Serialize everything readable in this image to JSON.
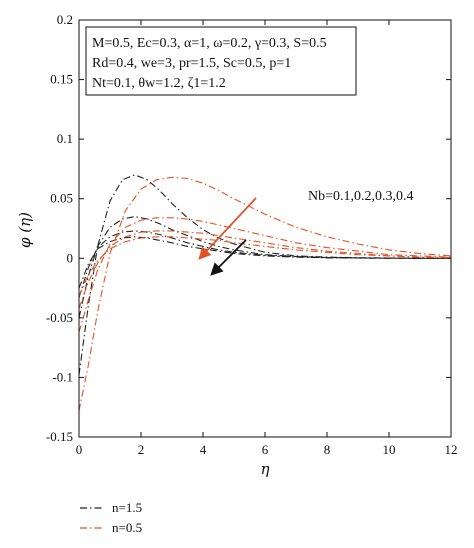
{
  "chart_data": {
    "type": "line",
    "xlabel": "η",
    "ylabel": "φ (η)",
    "xlim": [
      0,
      12
    ],
    "ylim": [
      -0.15,
      0.2
    ],
    "x_ticks": [
      "0",
      "2",
      "4",
      "6",
      "8",
      "10",
      "12"
    ],
    "y_ticks": [
      "-0.15",
      "-0.1",
      "-0.05",
      "0",
      "0.05",
      "0.1",
      "0.15",
      "0.2"
    ],
    "grid": false,
    "legend_position": "bottom-left, outside plot",
    "parameters": [
      "M=0.5, Ec=0.3, α=1, ω=0.2, γ=0.3, S=0.5",
      "Rd=0.4, we=3, pr=1.5, Sc=0.5, p=1",
      "Nt=0.1, θw=1.2, ζ1=1.2"
    ],
    "annotation": "Nb=0.1,0.2,0.3,0.4",
    "series": [
      {
        "name": "n=1.5",
        "color": "#222222",
        "dash": "dashdot",
        "curves": [
          {
            "x": [
              0,
              0.3,
              0.6,
              1.0,
              1.4,
              1.8,
              2.2,
              2.6,
              3.0,
              3.5,
              4.0,
              4.5,
              5.0,
              6.0,
              7.0,
              8.0,
              9.0,
              10.0,
              11.0,
              12.0
            ],
            "y": [
              -0.098,
              -0.04,
              0.01,
              0.048,
              0.066,
              0.07,
              0.066,
              0.057,
              0.046,
              0.034,
              0.024,
              0.017,
              0.012,
              0.005,
              0.002,
              0.001,
              0.0005,
              0.0002,
              0.0001,
              0
            ]
          },
          {
            "x": [
              0,
              0.3,
              0.6,
              1.0,
              1.4,
              1.8,
              2.2,
              2.6,
              3.0,
              3.5,
              4.0,
              4.5,
              5.0,
              6.0,
              7.0,
              8.0,
              9.0,
              10.0,
              11.0,
              12.0
            ],
            "y": [
              -0.05,
              -0.015,
              0.01,
              0.026,
              0.033,
              0.035,
              0.033,
              0.029,
              0.024,
              0.019,
              0.014,
              0.01,
              0.007,
              0.003,
              0.0015,
              0.0007,
              0.0003,
              0.0001,
              0,
              0
            ]
          },
          {
            "x": [
              0,
              0.3,
              0.6,
              1.0,
              1.4,
              1.8,
              2.2,
              2.6,
              3.0,
              3.5,
              4.0,
              4.5,
              5.0,
              6.0,
              7.0,
              8.0,
              9.0,
              10.0,
              11.0,
              12.0
            ],
            "y": [
              -0.033,
              -0.008,
              0.009,
              0.018,
              0.022,
              0.023,
              0.022,
              0.02,
              0.017,
              0.013,
              0.01,
              0.007,
              0.005,
              0.0025,
              0.0012,
              0.0005,
              0.0002,
              0.0001,
              0,
              0
            ]
          },
          {
            "x": [
              0,
              0.3,
              0.6,
              1.0,
              1.4,
              1.8,
              2.2,
              2.6,
              3.0,
              3.5,
              4.0,
              4.5,
              5.0,
              6.0,
              7.0,
              8.0,
              9.0,
              10.0,
              11.0,
              12.0
            ],
            "y": [
              -0.025,
              -0.005,
              0.008,
              0.014,
              0.017,
              0.018,
              0.017,
              0.015,
              0.013,
              0.01,
              0.008,
              0.006,
              0.004,
              0.002,
              0.001,
              0.0004,
              0.0002,
              0.0001,
              0,
              0
            ]
          }
        ]
      },
      {
        "name": "n=0.5",
        "color": "#e0532a",
        "dash": "dashdot",
        "curves": [
          {
            "x": [
              0,
              0.3,
              0.6,
              1.0,
              1.5,
              2.0,
              2.5,
              3.0,
              3.5,
              4.0,
              4.5,
              5.0,
              6.0,
              7.0,
              8.0,
              9.0,
              10.0,
              11.0,
              12.0
            ],
            "y": [
              -0.128,
              -0.09,
              -0.045,
              0.004,
              0.04,
              0.058,
              0.066,
              0.068,
              0.067,
              0.063,
              0.057,
              0.05,
              0.037,
              0.026,
              0.018,
              0.012,
              0.007,
              0.004,
              0.002
            ]
          },
          {
            "x": [
              0,
              0.3,
              0.6,
              1.0,
              1.5,
              2.0,
              2.5,
              3.0,
              3.5,
              4.0,
              4.5,
              5.0,
              6.0,
              7.0,
              8.0,
              9.0,
              10.0,
              11.0,
              12.0
            ],
            "y": [
              -0.062,
              -0.035,
              -0.01,
              0.012,
              0.026,
              0.032,
              0.034,
              0.034,
              0.033,
              0.031,
              0.028,
              0.025,
              0.019,
              0.013,
              0.009,
              0.006,
              0.003,
              0.002,
              0.001
            ]
          },
          {
            "x": [
              0,
              0.3,
              0.6,
              1.0,
              1.5,
              2.0,
              2.5,
              3.0,
              3.5,
              4.0,
              4.5,
              5.0,
              6.0,
              7.0,
              8.0,
              9.0,
              10.0,
              11.0,
              12.0
            ],
            "y": [
              -0.042,
              -0.02,
              -0.004,
              0.01,
              0.018,
              0.022,
              0.023,
              0.023,
              0.022,
              0.021,
              0.019,
              0.017,
              0.013,
              0.009,
              0.006,
              0.004,
              0.002,
              0.001,
              0.0005
            ]
          },
          {
            "x": [
              0,
              0.3,
              0.6,
              1.0,
              1.5,
              2.0,
              2.5,
              3.0,
              3.5,
              4.0,
              4.5,
              5.0,
              6.0,
              7.0,
              8.0,
              9.0,
              10.0,
              11.0,
              12.0
            ],
            "y": [
              -0.032,
              -0.014,
              -0.002,
              0.008,
              0.014,
              0.017,
              0.018,
              0.018,
              0.017,
              0.016,
              0.015,
              0.013,
              0.01,
              0.007,
              0.005,
              0.003,
              0.002,
              0.001,
              0.0005
            ]
          }
        ]
      }
    ]
  }
}
